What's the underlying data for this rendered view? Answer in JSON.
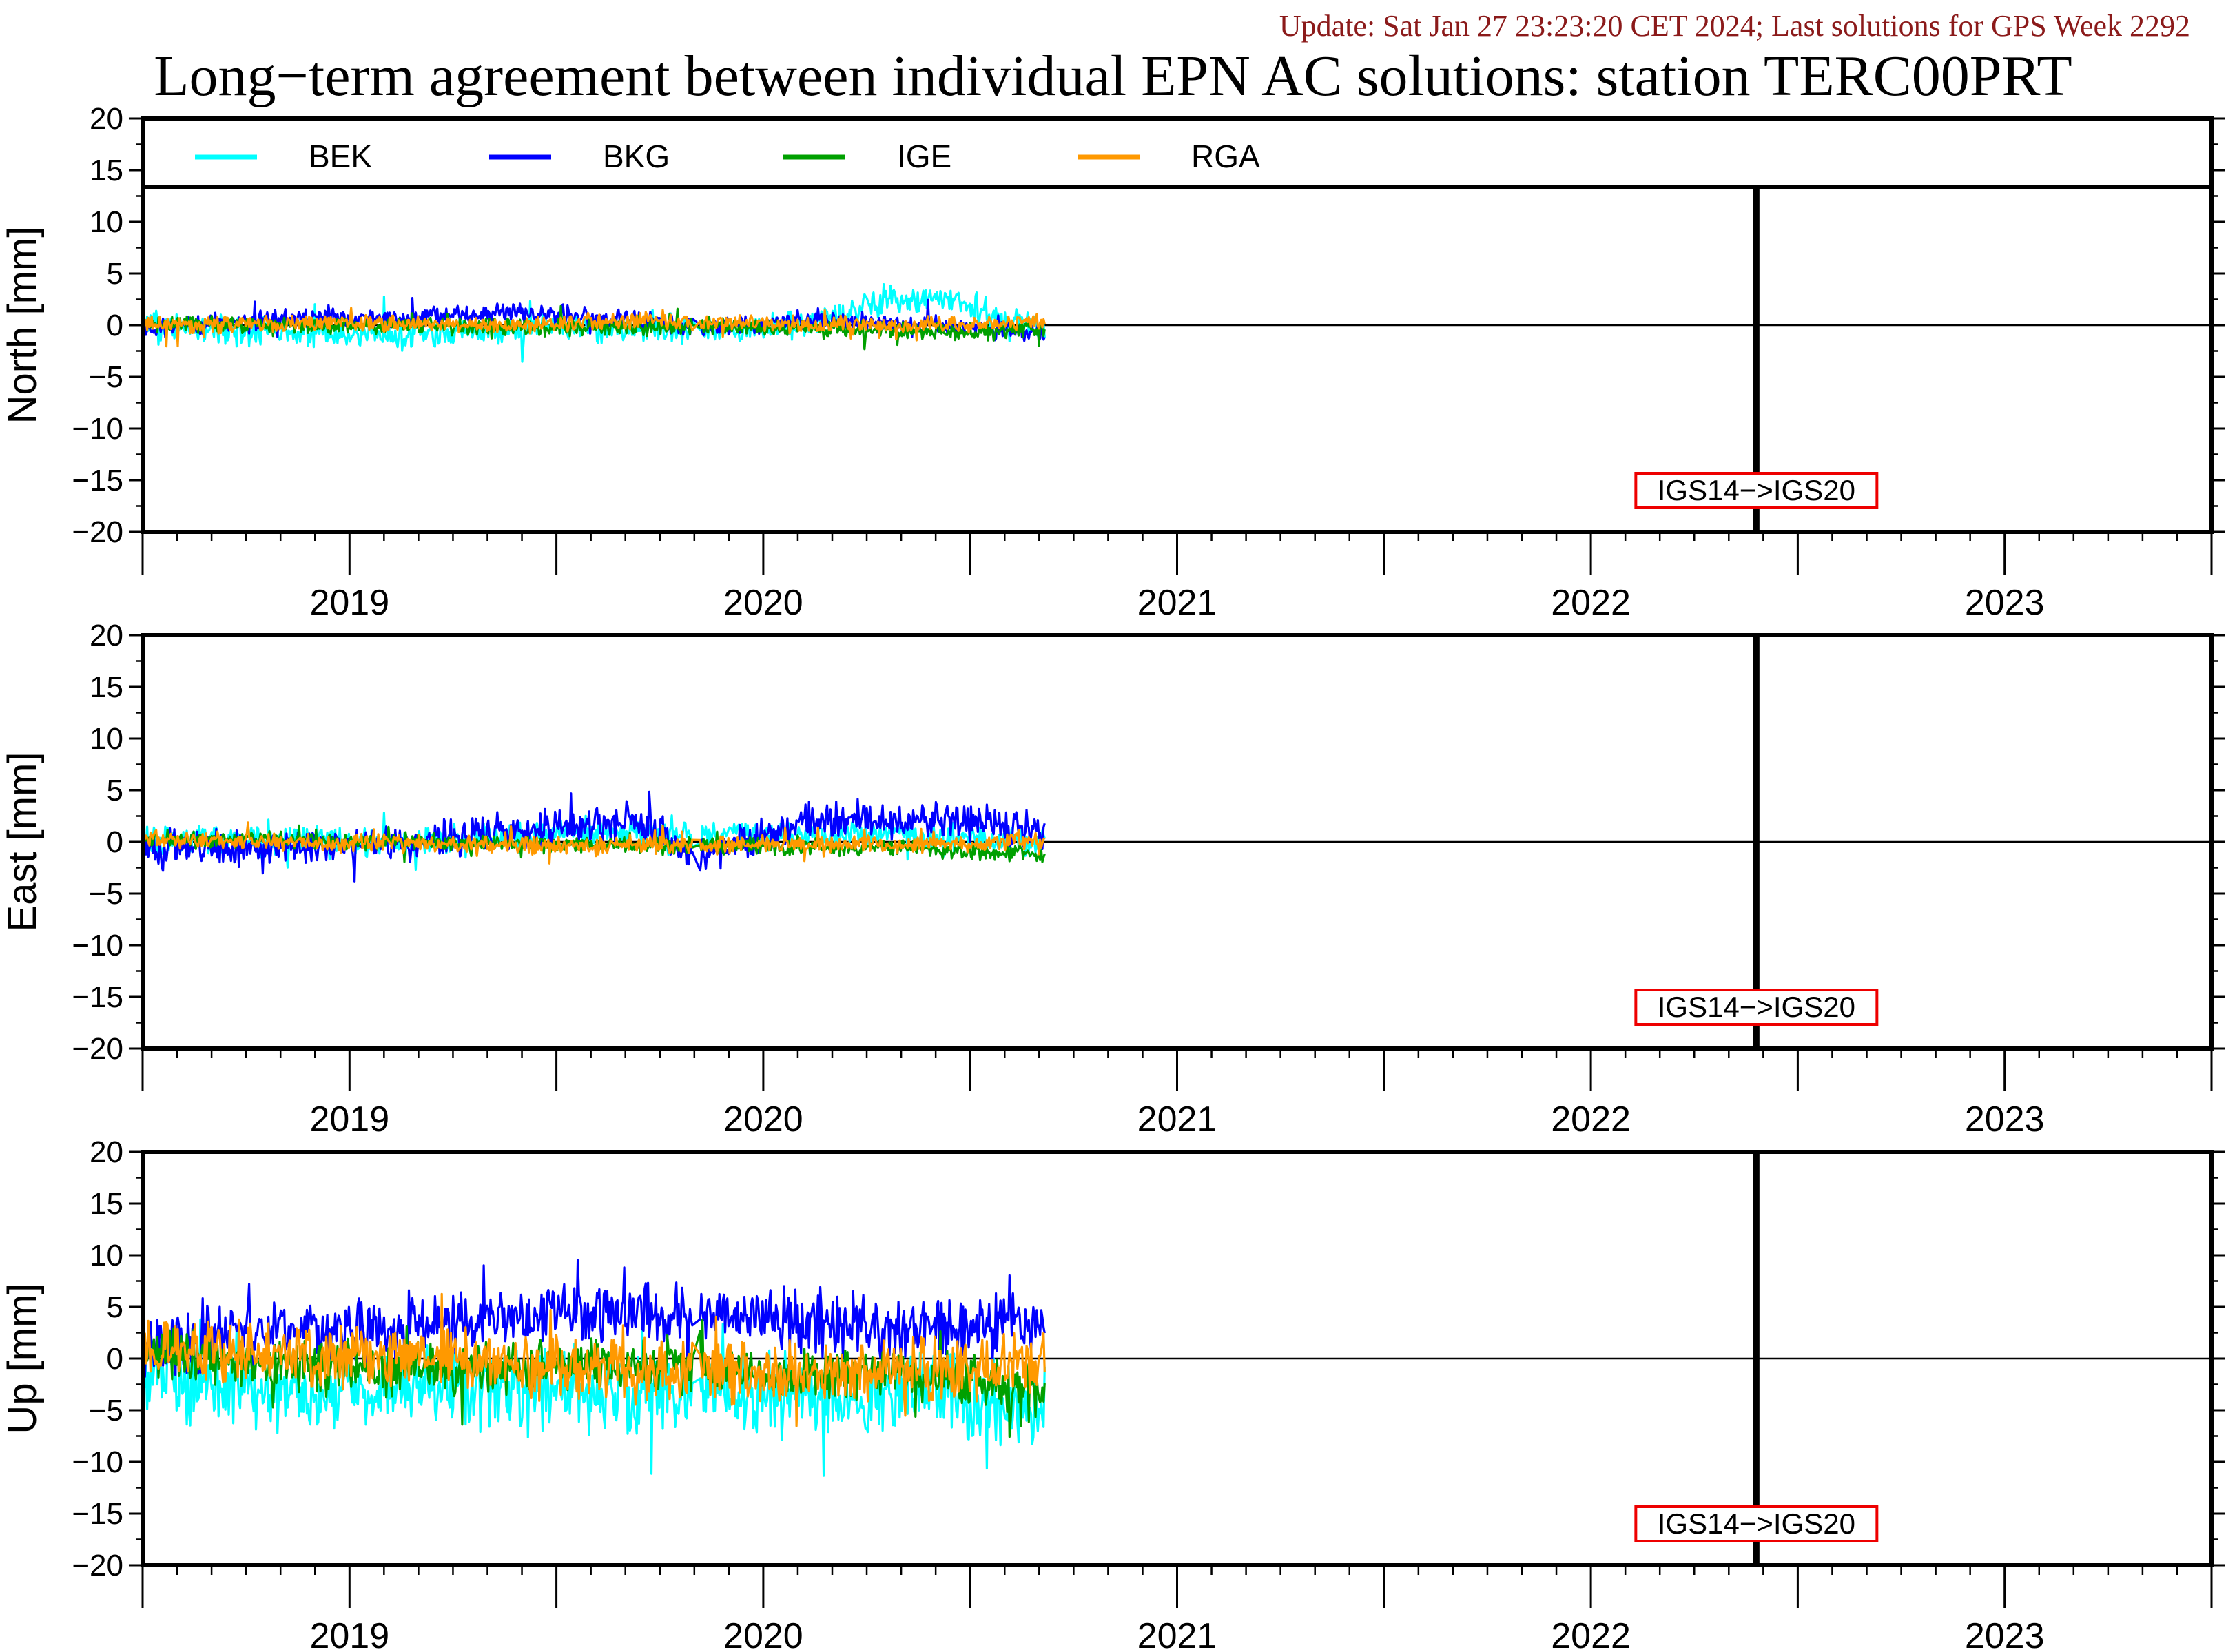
{
  "header": {
    "update_text": "Update: Sat Jan 27 23:23:20 CET 2024; Last solutions for GPS Week 2292",
    "title": "Long−term agreement between individual EPN AC solutions: station TERC00PRT"
  },
  "colors": {
    "BEK": "#00ffff",
    "BKG": "#0000ff",
    "IGE": "#00a000",
    "RGA": "#ff9900",
    "update_text": "#8b1a1a",
    "annotation_box": "#ee0000"
  },
  "chart_data": [
    {
      "type": "line",
      "panel": "north",
      "ylabel": "North [mm]",
      "ylim": [
        -20,
        20
      ],
      "yticks": [
        "20",
        "15",
        "10",
        "5",
        "0",
        "−5",
        "−10",
        "−15",
        "−20"
      ],
      "xlim": [
        2018.5,
        2023.5
      ],
      "year_labels": [
        "2019",
        "2020",
        "2021",
        "2022",
        "2023"
      ],
      "zero_line": true,
      "legend": {
        "placement": "top-inside",
        "entries": [
          "BEK",
          "BKG",
          "IGE",
          "RGA"
        ]
      },
      "event": {
        "x": 2022.4,
        "label": "IGS14−>IGS20"
      },
      "data_range": [
        2018.5,
        2020.68
      ],
      "series": [
        {
          "name": "BEK",
          "x_knots": [
            2018.5,
            2018.8,
            2019.1,
            2019.4,
            2019.7,
            2019.85,
            2020.1,
            2020.3,
            2020.45,
            2020.55,
            2020.68
          ],
          "y_knots": [
            0,
            -0.7,
            -0.8,
            -0.4,
            -0.2,
            -0.6,
            0,
            2.5,
            2.5,
            1.0,
            -0.2
          ],
          "noise": 1.0
        },
        {
          "name": "BKG",
          "x_knots": [
            2018.5,
            2018.8,
            2019.1,
            2019.4,
            2019.7,
            2019.85,
            2020.1,
            2020.3,
            2020.45,
            2020.55,
            2020.68
          ],
          "y_knots": [
            -0.3,
            0.5,
            0.7,
            1.2,
            0.5,
            -0.3,
            0.5,
            0.3,
            0,
            -0.4,
            -0.5
          ],
          "noise": 0.7
        },
        {
          "name": "IGE",
          "x_knots": [
            2018.5,
            2018.8,
            2019.1,
            2019.4,
            2019.7,
            2019.85,
            2020.1,
            2020.3,
            2020.45,
            2020.55,
            2020.68
          ],
          "y_knots": [
            0.2,
            0,
            0,
            -0.2,
            -0.2,
            -0.1,
            -0.3,
            -0.5,
            -0.6,
            -0.6,
            -0.4
          ],
          "noise": 0.6
        },
        {
          "name": "RGA",
          "x_knots": [
            2018.5,
            2018.8,
            2019.1,
            2019.4,
            2019.7,
            2019.85,
            2020.1,
            2020.3,
            2020.45,
            2020.55,
            2020.68
          ],
          "y_knots": [
            0,
            0.1,
            0.2,
            0,
            0.4,
            0.3,
            0,
            0,
            0,
            0.2,
            0.3
          ],
          "noise": 0.6
        }
      ]
    },
    {
      "type": "line",
      "panel": "east",
      "ylabel": "East [mm]",
      "ylim": [
        -20,
        20
      ],
      "yticks": [
        "20",
        "15",
        "10",
        "5",
        "0",
        "−5",
        "−10",
        "−15",
        "−20"
      ],
      "xlim": [
        2018.5,
        2023.5
      ],
      "year_labels": [
        "2019",
        "2020",
        "2021",
        "2022",
        "2023"
      ],
      "zero_line": true,
      "event": {
        "x": 2022.4,
        "label": "IGS14−>IGS20"
      },
      "data_range": [
        2018.5,
        2020.68
      ],
      "series": [
        {
          "name": "BEK",
          "x_knots": [
            2018.5,
            2018.8,
            2019.1,
            2019.4,
            2019.7,
            2019.85,
            2020.1,
            2020.3,
            2020.45,
            2020.55,
            2020.68
          ],
          "y_knots": [
            0.2,
            0,
            0,
            0.5,
            1.0,
            0.5,
            0.5,
            0.8,
            0.5,
            0.2,
            0
          ],
          "noise": 1.0
        },
        {
          "name": "BKG",
          "x_knots": [
            2018.5,
            2018.8,
            2019.1,
            2019.4,
            2019.7,
            2019.85,
            2020.1,
            2020.3,
            2020.45,
            2020.55,
            2020.68
          ],
          "y_knots": [
            -0.5,
            -0.5,
            -0.3,
            1.0,
            2.0,
            -1.5,
            2.0,
            2.0,
            2.2,
            1.5,
            1.0
          ],
          "noise": 1.3
        },
        {
          "name": "IGE",
          "x_knots": [
            2018.5,
            2018.8,
            2019.1,
            2019.4,
            2019.7,
            2019.85,
            2020.1,
            2020.3,
            2020.45,
            2020.55,
            2020.68
          ],
          "y_knots": [
            0.2,
            0.2,
            0,
            -0.2,
            -0.3,
            -0.3,
            -0.5,
            -0.6,
            -0.8,
            -1.0,
            -1.2
          ],
          "noise": 0.6
        },
        {
          "name": "RGA",
          "x_knots": [
            2018.5,
            2018.8,
            2019.1,
            2019.4,
            2019.7,
            2019.85,
            2020.1,
            2020.3,
            2020.45,
            2020.55,
            2020.68
          ],
          "y_knots": [
            0.3,
            0,
            0,
            -0.3,
            -0.3,
            -0.3,
            -0.2,
            -0.3,
            -0.2,
            0,
            0.2
          ],
          "noise": 0.6
        }
      ]
    },
    {
      "type": "line",
      "panel": "up",
      "ylabel": "Up [mm]",
      "ylim": [
        -20,
        20
      ],
      "yticks": [
        "20",
        "15",
        "10",
        "5",
        "0",
        "−5",
        "−10",
        "−15",
        "−20"
      ],
      "xlim": [
        2018.5,
        2023.5
      ],
      "year_labels": [
        "2019",
        "2020",
        "2021",
        "2022",
        "2023"
      ],
      "zero_line": true,
      "event": {
        "x": 2022.4,
        "label": "IGS14−>IGS20"
      },
      "data_range": [
        2018.5,
        2020.68
      ],
      "series": [
        {
          "name": "BEK",
          "x_knots": [
            2018.5,
            2018.8,
            2019.1,
            2019.4,
            2019.7,
            2019.85,
            2020.1,
            2020.3,
            2020.45,
            2020.55,
            2020.68
          ],
          "y_knots": [
            -1.0,
            -3.5,
            -3.0,
            -3.0,
            -3.0,
            -3.5,
            -3.5,
            -3.5,
            -3.0,
            -4.5,
            -5.0
          ],
          "noise": 3.0
        },
        {
          "name": "BKG",
          "x_knots": [
            2018.5,
            2018.8,
            2019.1,
            2019.4,
            2019.7,
            2019.85,
            2020.1,
            2020.3,
            2020.45,
            2020.55,
            2020.68
          ],
          "y_knots": [
            1.0,
            2.5,
            3.0,
            4.0,
            4.5,
            4.5,
            3.5,
            3.0,
            2.8,
            3.0,
            3.5
          ],
          "noise": 2.3
        },
        {
          "name": "IGE",
          "x_knots": [
            2018.5,
            2018.8,
            2019.1,
            2019.4,
            2019.7,
            2019.85,
            2020.1,
            2020.3,
            2020.45,
            2020.55,
            2020.68
          ],
          "y_knots": [
            0.5,
            -0.5,
            -1.0,
            -1.0,
            -0.8,
            -1.0,
            -1.5,
            -1.5,
            -2.0,
            -2.5,
            -3.0
          ],
          "noise": 1.8
        },
        {
          "name": "RGA",
          "x_knots": [
            2018.5,
            2018.8,
            2019.1,
            2019.4,
            2019.7,
            2019.85,
            2020.1,
            2020.3,
            2020.45,
            2020.55,
            2020.68
          ],
          "y_knots": [
            0.5,
            0.5,
            0,
            -0.5,
            -1.0,
            -1.0,
            -1.5,
            -1.0,
            -1.0,
            -0.8,
            0
          ],
          "noise": 2.3
        }
      ]
    }
  ]
}
